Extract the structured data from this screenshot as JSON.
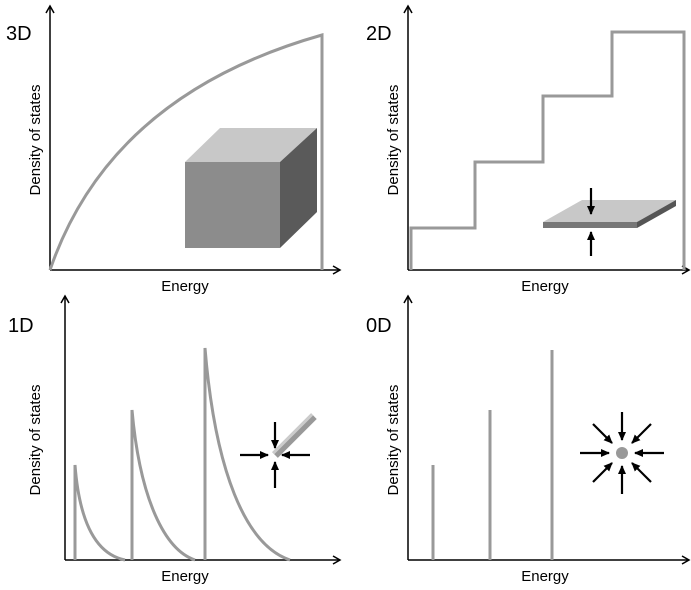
{
  "panels": [
    {
      "label": "3D",
      "y_label": "Density of states",
      "x_label": "Energy"
    },
    {
      "label": "2D",
      "y_label": "Density of states",
      "x_label": "Energy"
    },
    {
      "label": "1D",
      "y_label": "Density of states",
      "x_label": "Energy"
    },
    {
      "label": "0D",
      "y_label": "Density of states",
      "x_label": "Energy"
    }
  ]
}
